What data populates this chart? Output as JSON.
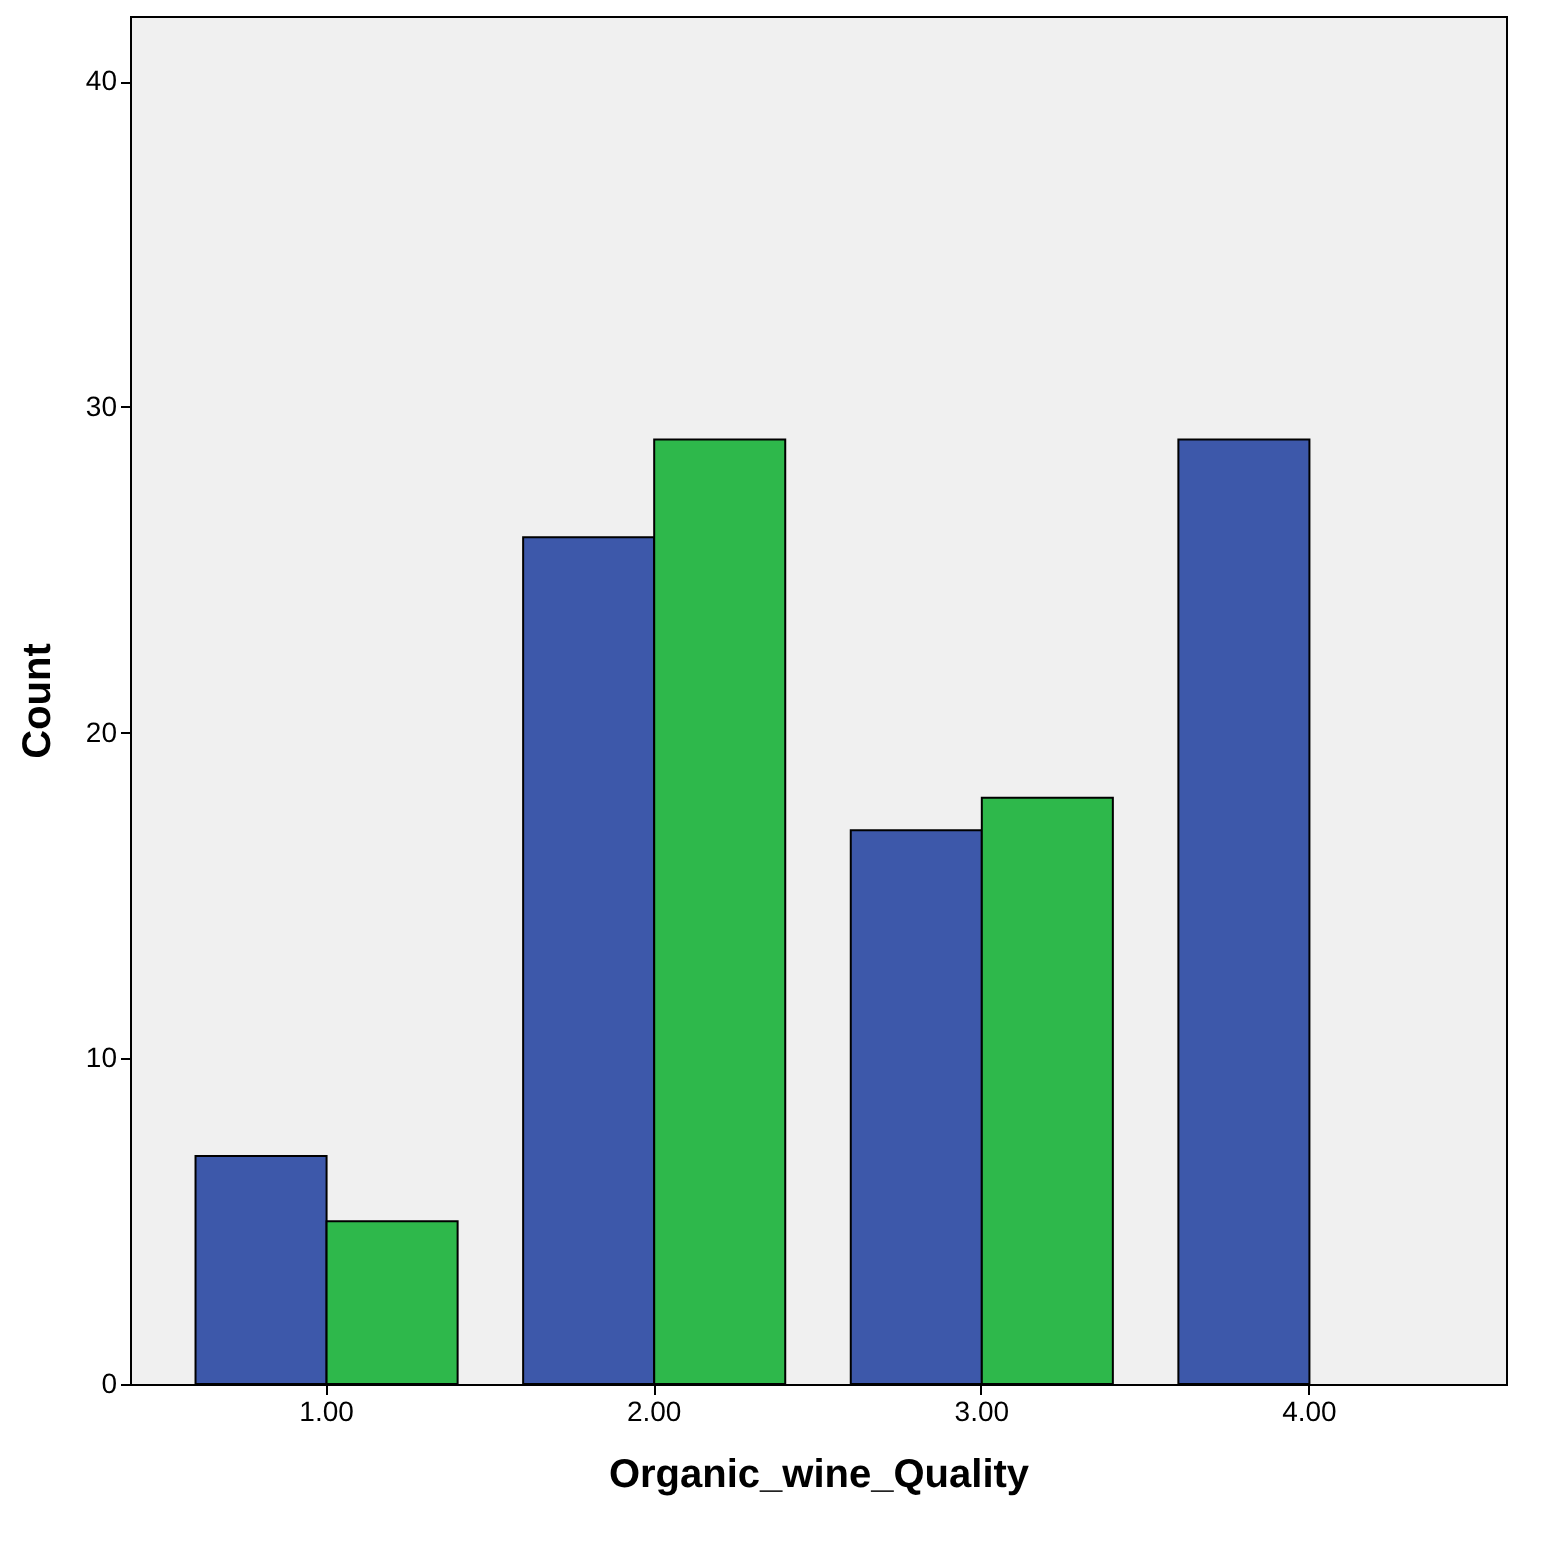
{
  "chart_data": {
    "type": "bar",
    "xlabel": "Organic_wine_Quality",
    "ylabel": "Count",
    "categories": [
      "1.00",
      "2.00",
      "3.00",
      "4.00"
    ],
    "series": [
      {
        "color": "#3d58aa",
        "values": [
          7,
          26,
          17,
          29
        ]
      },
      {
        "color": "#2eb84b",
        "values": [
          5,
          29,
          18,
          null
        ]
      }
    ],
    "ylim": [
      0,
      42
    ],
    "yticks": [
      0,
      10,
      20,
      30,
      40
    ],
    "grid": false,
    "legend": false
  }
}
